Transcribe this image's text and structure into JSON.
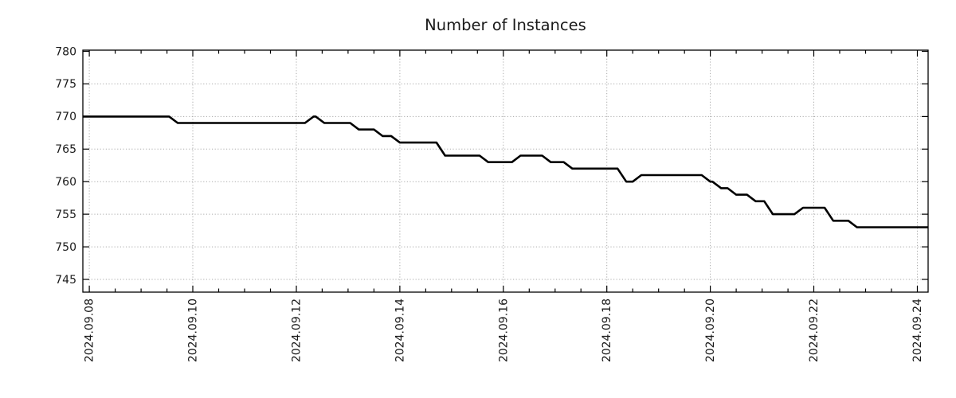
{
  "page": {
    "background": "#ffffff"
  },
  "chart_data": {
    "type": "line",
    "title": "Number of Instances",
    "grid": {
      "show": true,
      "style": "dotted",
      "color": "#aaaaaa",
      "position": "major-ticks"
    },
    "frame_color": "#000000",
    "text_color": "#1a1a1a",
    "legend": "none",
    "x_axis": {
      "label": "",
      "start": "2024-09-07 21:00",
      "end": "2024-09-24 05:00",
      "major_tick_labels": [
        "2024.09.08",
        "2024.09.10",
        "2024.09.12",
        "2024.09.14",
        "2024.09.16",
        "2024.09.18",
        "2024.09.20",
        "2024.09.22",
        "2024.09.24"
      ],
      "major_tick_interval_days": 2,
      "minor_tick_interval_hours": 12,
      "label_rotation_deg": -90
    },
    "y_axis": {
      "label": "",
      "min": 743,
      "max": 780,
      "ticks": [
        745,
        750,
        755,
        760,
        765,
        770,
        775,
        780
      ]
    },
    "series": [
      {
        "name": "Number of Instances",
        "color": "#000000",
        "line_width": 2.6,
        "step_ramp_hours": 4,
        "steps": [
          [
            "2024-09-07 21:00",
            770
          ],
          [
            "2024-09-09 17:00",
            769
          ],
          [
            "2024-09-12 08:00",
            770
          ],
          [
            "2024-09-12 13:00",
            769
          ],
          [
            "2024-09-13 05:00",
            768
          ],
          [
            "2024-09-13 16:00",
            767
          ],
          [
            "2024-09-14 00:00",
            766
          ],
          [
            "2024-09-14 21:00",
            764
          ],
          [
            "2024-09-15 17:00",
            763
          ],
          [
            "2024-09-16 08:00",
            764
          ],
          [
            "2024-09-16 22:00",
            763
          ],
          [
            "2024-09-17 08:00",
            762
          ],
          [
            "2024-09-18 09:00",
            760
          ],
          [
            "2024-09-18 16:00",
            761
          ],
          [
            "2024-09-20 00:00",
            760
          ],
          [
            "2024-09-20 05:00",
            759
          ],
          [
            "2024-09-20 12:00",
            758
          ],
          [
            "2024-09-20 21:00",
            757
          ],
          [
            "2024-09-21 05:00",
            755
          ],
          [
            "2024-09-21 19:00",
            756
          ],
          [
            "2024-09-22 09:00",
            754
          ],
          [
            "2024-09-22 20:00",
            753
          ],
          [
            "2024-09-24 05:00",
            753
          ]
        ]
      }
    ]
  }
}
